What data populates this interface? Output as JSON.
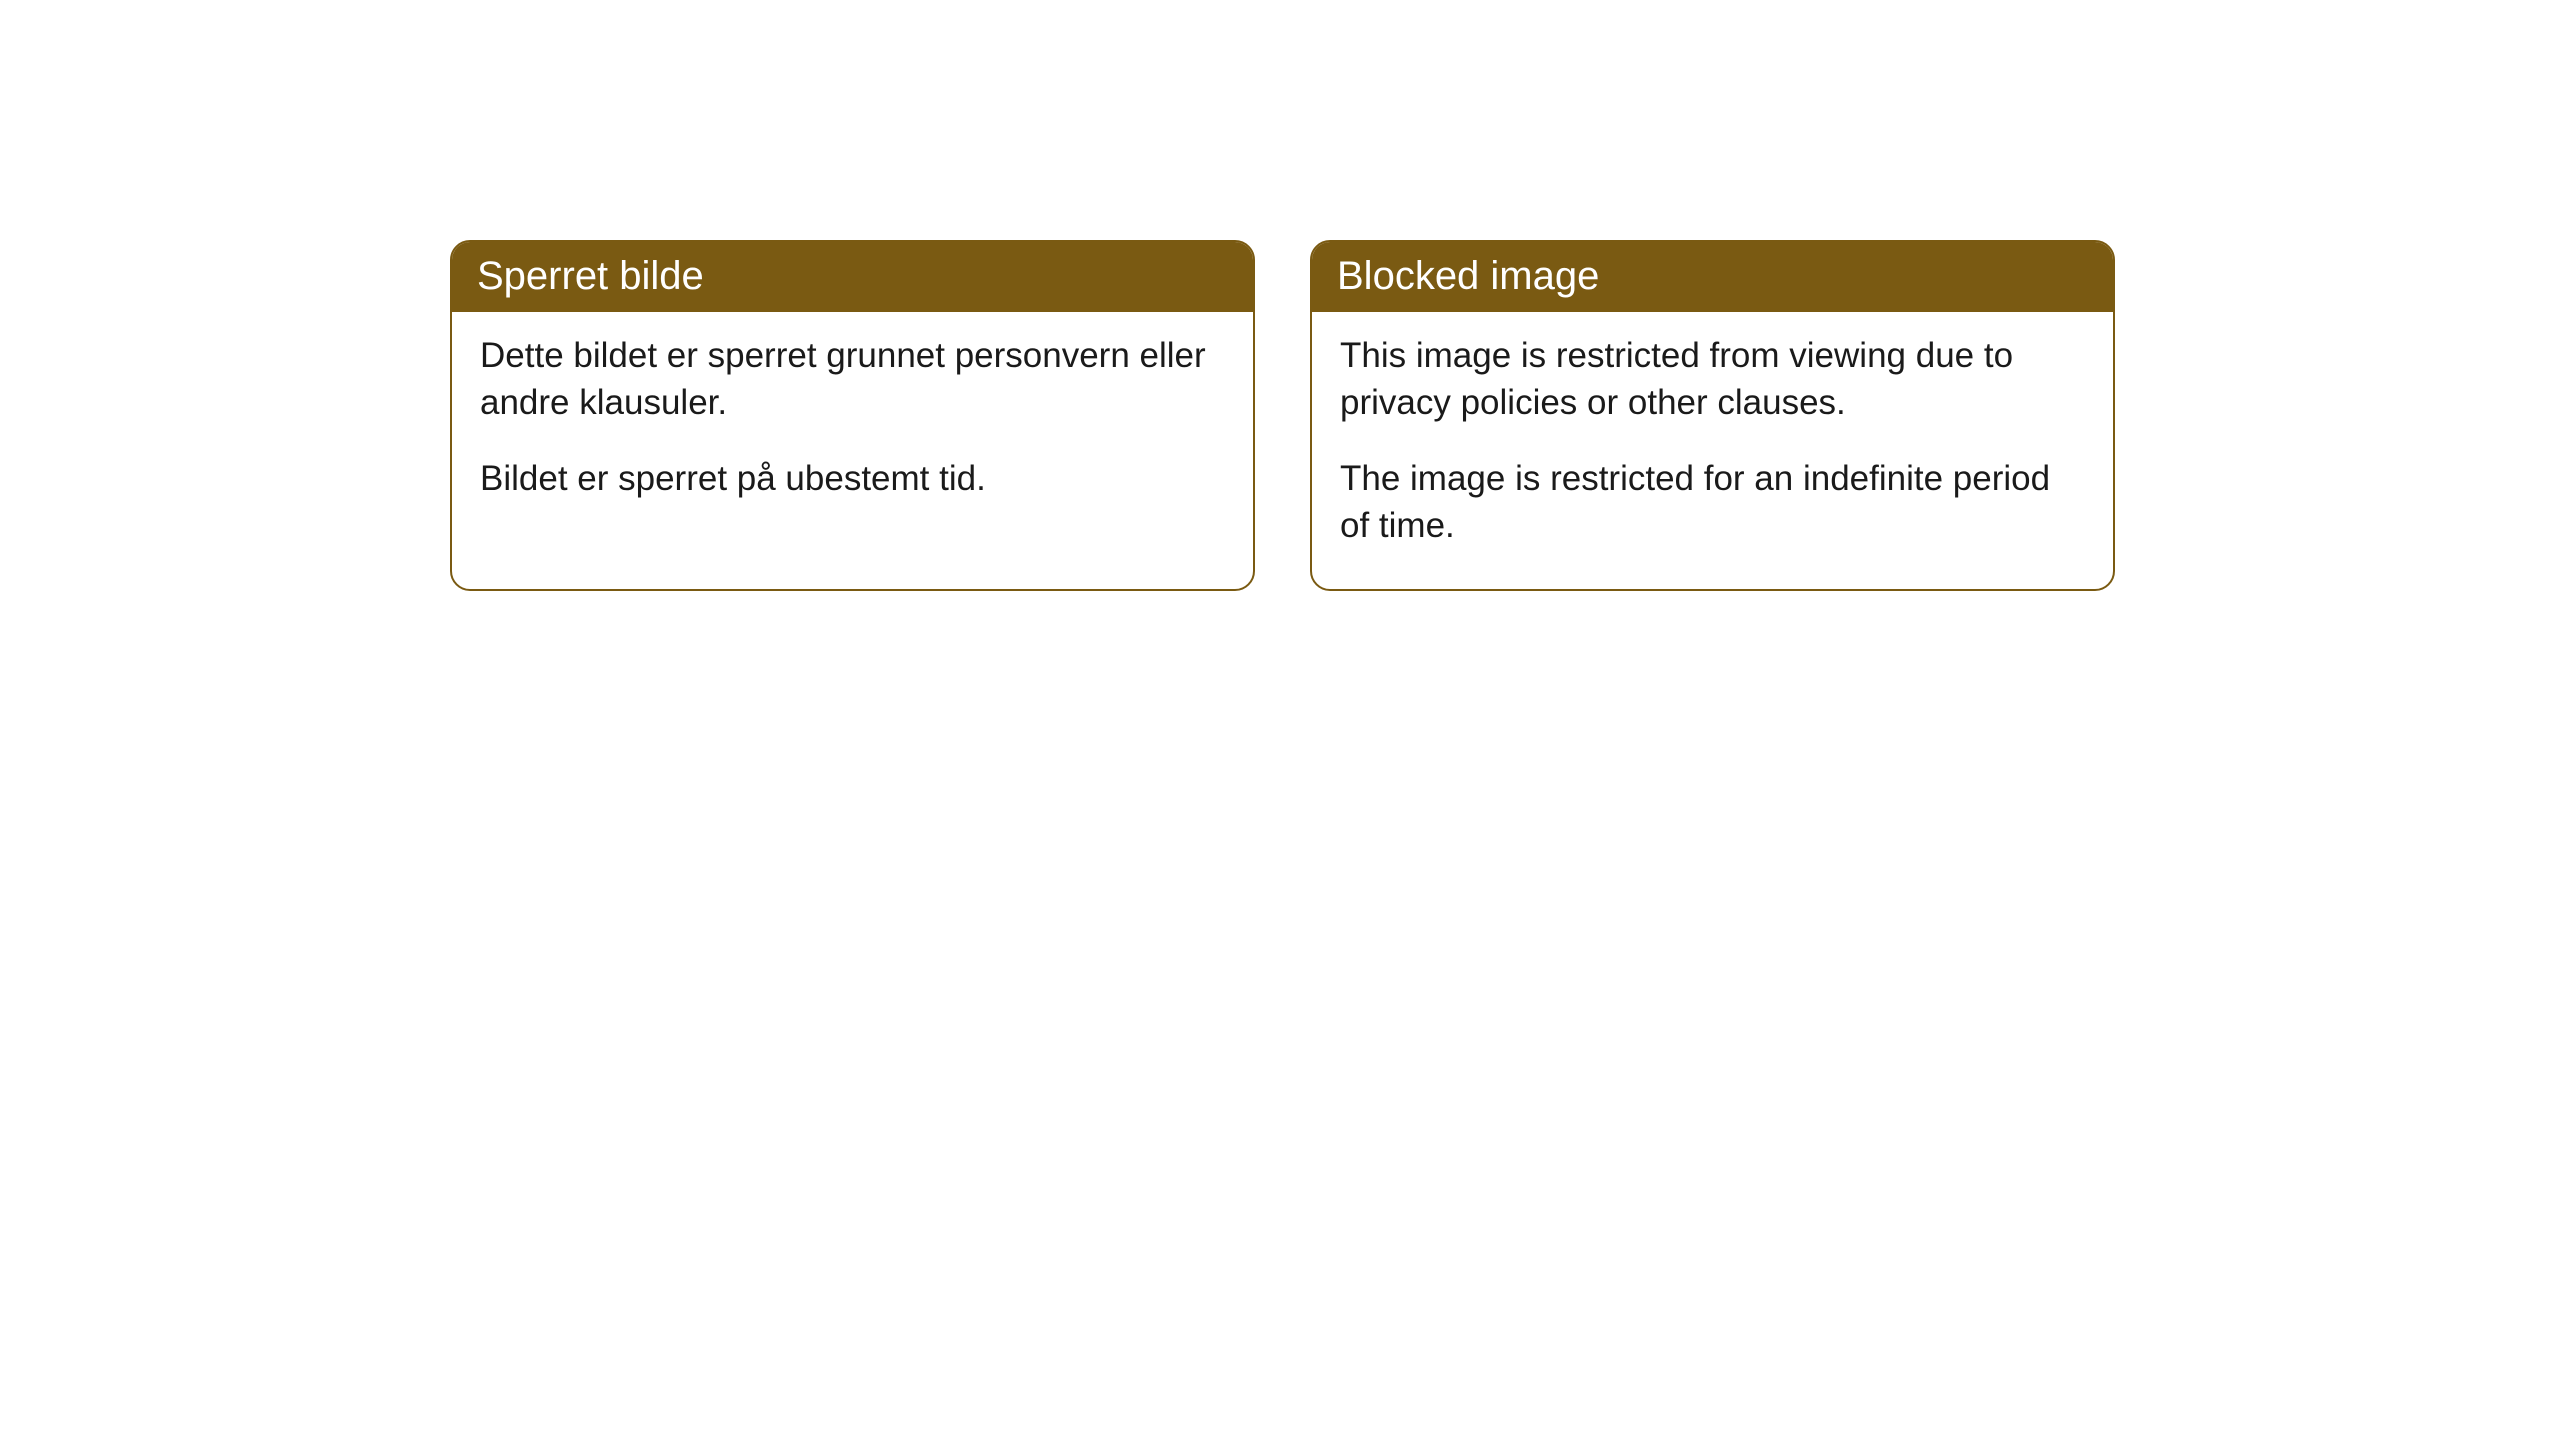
{
  "cards": [
    {
      "title": "Sperret bilde",
      "paragraph1": "Dette bildet er sperret grunnet personvern eller andre klausuler.",
      "paragraph2": "Bildet er sperret på ubestemt tid."
    },
    {
      "title": "Blocked image",
      "paragraph1": "This image is restricted from viewing due to privacy policies or other clauses.",
      "paragraph2": "The image is restricted for an indefinite period of time."
    }
  ],
  "styling": {
    "header_background_color": "#7a5a12",
    "header_text_color": "#ffffff",
    "border_color": "#7a5a12",
    "body_background_color": "#ffffff",
    "body_text_color": "#1a1a1a",
    "border_radius": 20,
    "header_fontsize": 40,
    "body_fontsize": 35
  }
}
